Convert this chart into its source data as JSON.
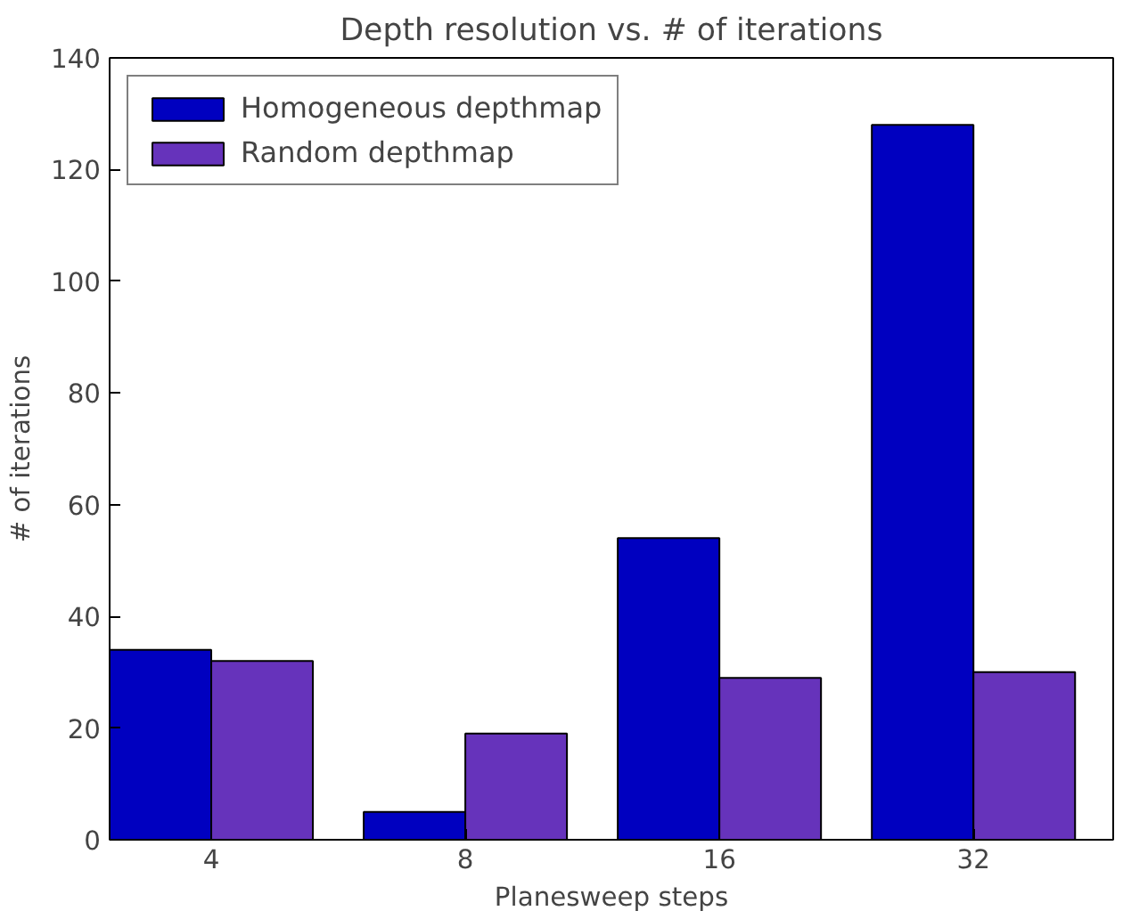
{
  "chart_data": {
    "type": "bar",
    "title": "Depth resolution vs. # of iterations",
    "xlabel": "Planesweep steps",
    "ylabel": "# of iterations",
    "categories": [
      "4",
      "8",
      "16",
      "32"
    ],
    "series": [
      {
        "name": "Homogeneous depthmap",
        "color": "#0000c0",
        "values": [
          34,
          5,
          54,
          128
        ]
      },
      {
        "name": "Random depthmap",
        "color": "#6633bb",
        "values": [
          32,
          19,
          29,
          30
        ]
      }
    ],
    "ylim": [
      0,
      140
    ],
    "yticks": [
      0,
      20,
      40,
      60,
      80,
      100,
      120,
      140
    ],
    "grid": false,
    "legend": "top left"
  }
}
